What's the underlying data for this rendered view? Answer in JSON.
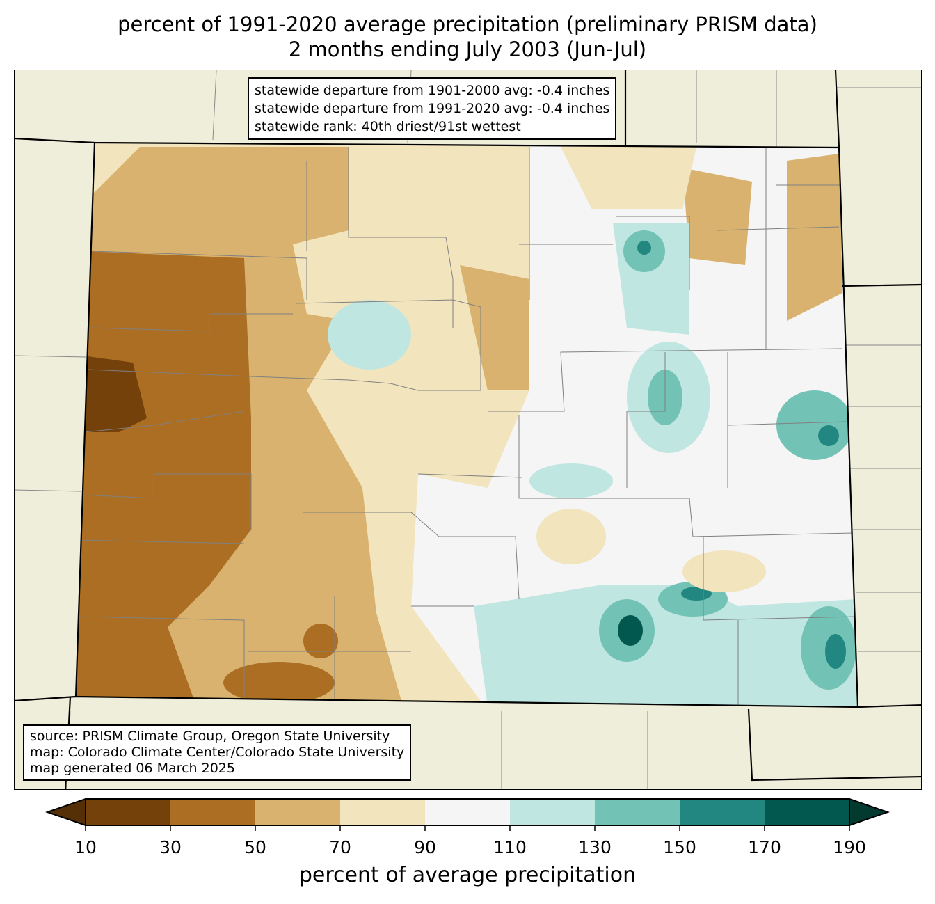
{
  "title": {
    "line1": "percent of 1991-2020 average precipitation (preliminary PRISM data)",
    "line2": "2 months ending July 2003 (Jun-Jul)"
  },
  "stats": [
    "statewide departure from 1901-2000 avg: -0.4 inches",
    "statewide departure from 1991-2020 avg: -0.4 inches",
    "statewide rank: 40th driest/91st wettest"
  ],
  "source": [
    "source: PRISM Climate Group, Oregon State University",
    "map: Colorado Climate Center/Colorado State University",
    "map generated 06 March 2025"
  ],
  "colorbar": {
    "label": "percent of average precipitation",
    "ticks": [
      "10",
      "30",
      "50",
      "70",
      "90",
      "110",
      "130",
      "150",
      "170",
      "190"
    ],
    "colors": [
      "#734109",
      "#ab6e22",
      "#d8b26e",
      "#f2e4bd",
      "#f4f5f4",
      "#bfe6e1",
      "#72c2b5",
      "#228780",
      "#02574e"
    ],
    "under": "#553007",
    "over": "#033a30"
  },
  "map_colors": {
    "background": "#efeedb",
    "county_lines": "#808080",
    "state_lines": "#000000"
  }
}
